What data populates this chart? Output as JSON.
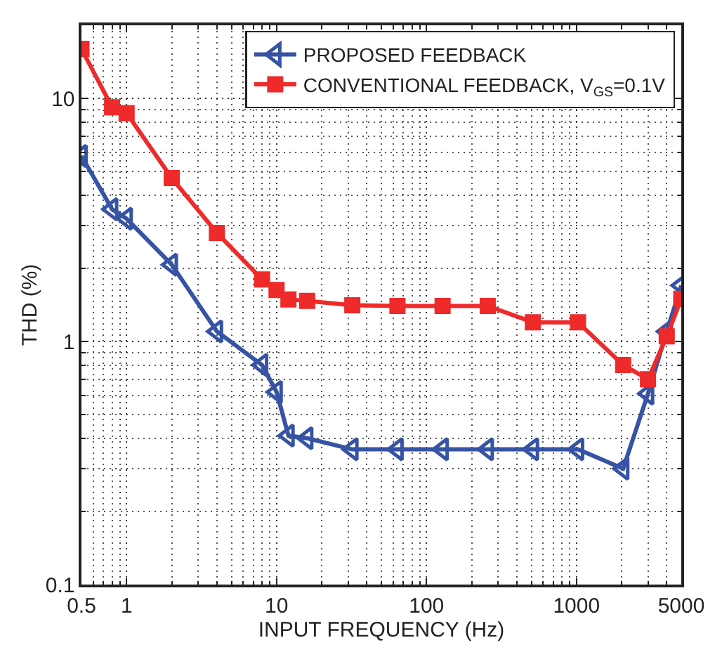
{
  "chart_data": {
    "type": "line",
    "xlabel": "INPUT FREQUENCY (Hz)",
    "ylabel": "THD (%)",
    "log": "xy",
    "grid": true,
    "legend": "top right",
    "line_style": "solid",
    "xlim": [
      0.5,
      5000
    ],
    "xticks": [
      0.5,
      1,
      10,
      100,
      1000,
      5000
    ],
    "ylim": [
      0.1,
      20
    ],
    "yticks": [
      0.1,
      1,
      10
    ],
    "series": [
      {
        "name": "PROPOSED FEEDBACK",
        "color": "#3653a4",
        "marker": "triangle",
        "x": [
          0.5,
          0.8,
          1,
          2,
          4,
          8,
          10,
          12,
          16,
          32,
          64,
          128,
          256,
          512,
          1024,
          2048,
          3000,
          4000,
          5000
        ],
        "values": [
          5.8,
          3.5,
          3.2,
          2.07,
          1.1,
          0.8,
          0.62,
          0.41,
          0.4,
          0.36,
          0.36,
          0.36,
          0.36,
          0.36,
          0.36,
          0.3,
          0.61,
          1.1,
          1.7
        ]
      },
      {
        "name": "CONVENTIONAL FEEDBACK, V$_{GS}$=0.1V",
        "color": "#ee2a2a",
        "marker": "square",
        "x": [
          0.5,
          0.8,
          1,
          2,
          4,
          8,
          10,
          12,
          16,
          32,
          64,
          128,
          256,
          512,
          1024,
          2048,
          3000,
          4000,
          5000
        ],
        "values": [
          16,
          9.2,
          8.7,
          4.7,
          2.8,
          1.8,
          1.63,
          1.49,
          1.47,
          1.41,
          1.4,
          1.4,
          1.4,
          1.2,
          1.2,
          0.8,
          0.7,
          1.05,
          1.5
        ]
      }
    ]
  }
}
